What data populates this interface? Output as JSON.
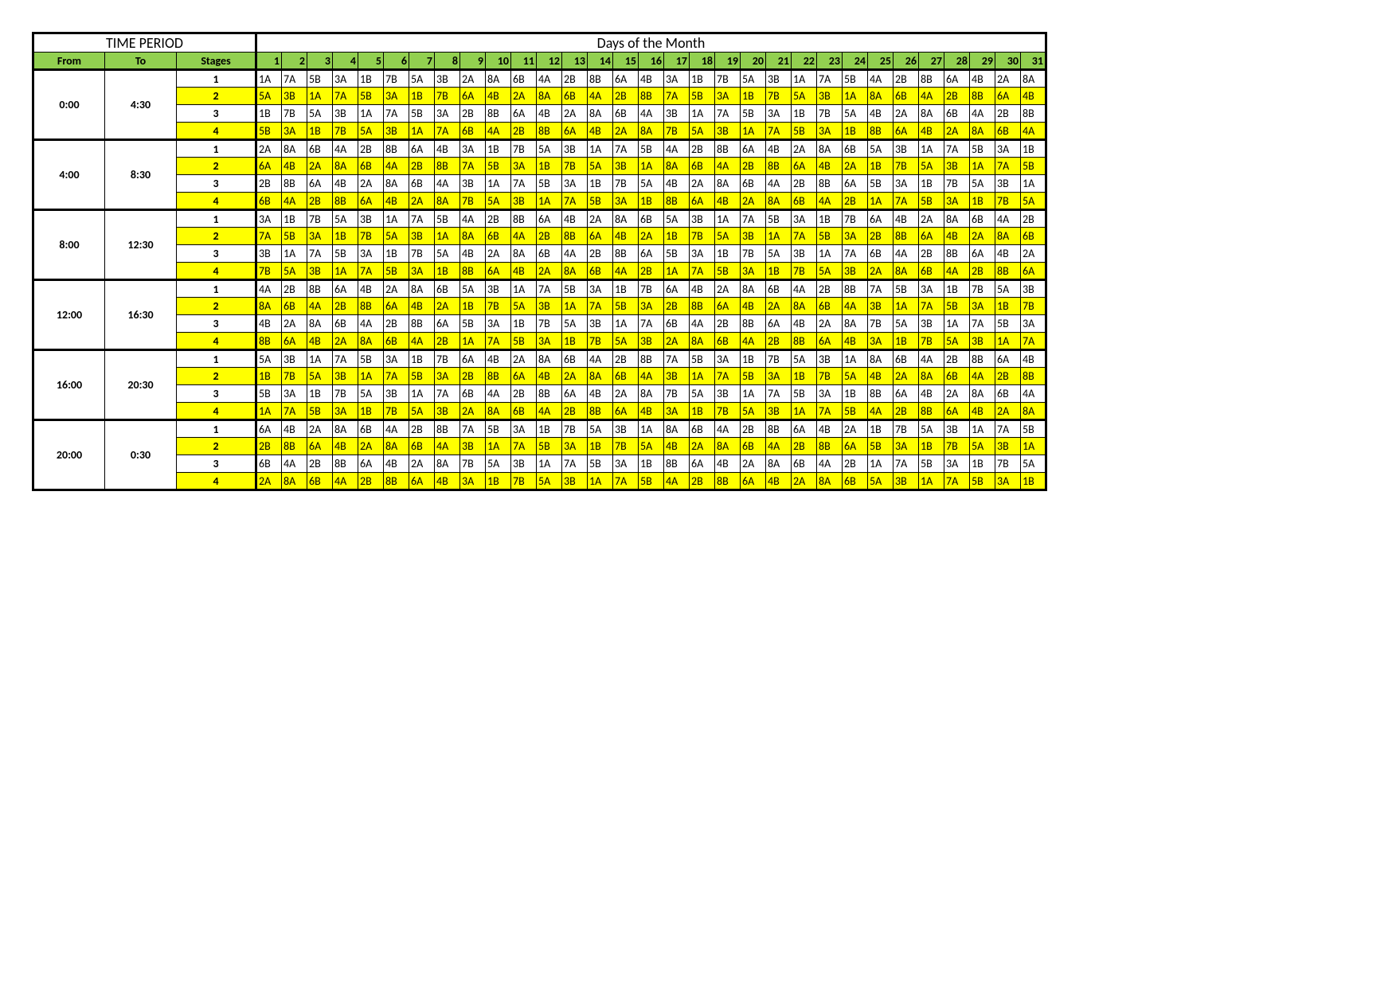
{
  "headers": {
    "time_period": "TIME PERIOD",
    "days_of_month": "Days of the Month",
    "from": "From",
    "to": "To",
    "stages": "Stages"
  },
  "colors": {
    "header_green": "#92d050",
    "yellow": "#ffff00",
    "white": "#ffffff",
    "border": "#000000"
  },
  "day_numbers": [
    1,
    2,
    3,
    4,
    5,
    6,
    7,
    8,
    9,
    10,
    11,
    12,
    13,
    14,
    15,
    16,
    17,
    18,
    19,
    20,
    21,
    22,
    23,
    24,
    25,
    26,
    27,
    28,
    29,
    30,
    31
  ],
  "col_widths": {
    "from": 90,
    "to": 90,
    "stages": 100,
    "day": 32
  },
  "font": {
    "family": "Calibri, Arial, sans-serif",
    "title_size": 18,
    "body_size": 14
  },
  "periods": [
    {
      "from": "0:00",
      "to": "4:30",
      "rows": [
        {
          "stage": "1",
          "yellow": false,
          "cells": [
            "1A",
            "7A",
            "5B",
            "3A",
            "1B",
            "7B",
            "5A",
            "3B",
            "2A",
            "8A",
            "6B",
            "4A",
            "2B",
            "8B",
            "6A",
            "4B",
            "3A",
            "1B",
            "7B",
            "5A",
            "3B",
            "1A",
            "7A",
            "5B",
            "4A",
            "2B",
            "8B",
            "6A",
            "4B",
            "2A",
            "8A"
          ]
        },
        {
          "stage": "2",
          "yellow": true,
          "cells": [
            "5A",
            "3B",
            "1A",
            "7A",
            "5B",
            "3A",
            "1B",
            "7B",
            "6A",
            "4B",
            "2A",
            "8A",
            "6B",
            "4A",
            "2B",
            "8B",
            "7A",
            "5B",
            "3A",
            "1B",
            "7B",
            "5A",
            "3B",
            "1A",
            "8A",
            "6B",
            "4A",
            "2B",
            "8B",
            "6A",
            "4B"
          ]
        },
        {
          "stage": "3",
          "yellow": false,
          "cells": [
            "1B",
            "7B",
            "5A",
            "3B",
            "1A",
            "7A",
            "5B",
            "3A",
            "2B",
            "8B",
            "6A",
            "4B",
            "2A",
            "8A",
            "6B",
            "4A",
            "3B",
            "1A",
            "7A",
            "5B",
            "3A",
            "1B",
            "7B",
            "5A",
            "4B",
            "2A",
            "8A",
            "6B",
            "4A",
            "2B",
            "8B"
          ]
        },
        {
          "stage": "4",
          "yellow": true,
          "cells": [
            "5B",
            "3A",
            "1B",
            "7B",
            "5A",
            "3B",
            "1A",
            "7A",
            "6B",
            "4A",
            "2B",
            "8B",
            "6A",
            "4B",
            "2A",
            "8A",
            "7B",
            "5A",
            "3B",
            "1A",
            "7A",
            "5B",
            "3A",
            "1B",
            "8B",
            "6A",
            "4B",
            "2A",
            "8A",
            "6B",
            "4A"
          ]
        }
      ]
    },
    {
      "from": "4:00",
      "to": "8:30",
      "rows": [
        {
          "stage": "1",
          "yellow": false,
          "cells": [
            "2A",
            "8A",
            "6B",
            "4A",
            "2B",
            "8B",
            "6A",
            "4B",
            "3A",
            "1B",
            "7B",
            "5A",
            "3B",
            "1A",
            "7A",
            "5B",
            "4A",
            "2B",
            "8B",
            "6A",
            "4B",
            "2A",
            "8A",
            "6B",
            "5A",
            "3B",
            "1A",
            "7A",
            "5B",
            "3A",
            "1B"
          ]
        },
        {
          "stage": "2",
          "yellow": true,
          "cells": [
            "6A",
            "4B",
            "2A",
            "8A",
            "6B",
            "4A",
            "2B",
            "8B",
            "7A",
            "5B",
            "3A",
            "1B",
            "7B",
            "5A",
            "3B",
            "1A",
            "8A",
            "6B",
            "4A",
            "2B",
            "8B",
            "6A",
            "4B",
            "2A",
            "1B",
            "7B",
            "5A",
            "3B",
            "1A",
            "7A",
            "5B"
          ]
        },
        {
          "stage": "3",
          "yellow": false,
          "cells": [
            "2B",
            "8B",
            "6A",
            "4B",
            "2A",
            "8A",
            "6B",
            "4A",
            "3B",
            "1A",
            "7A",
            "5B",
            "3A",
            "1B",
            "7B",
            "5A",
            "4B",
            "2A",
            "8A",
            "6B",
            "4A",
            "2B",
            "8B",
            "6A",
            "5B",
            "3A",
            "1B",
            "7B",
            "5A",
            "3B",
            "1A"
          ]
        },
        {
          "stage": "4",
          "yellow": true,
          "cells": [
            "6B",
            "4A",
            "2B",
            "8B",
            "6A",
            "4B",
            "2A",
            "8A",
            "7B",
            "5A",
            "3B",
            "1A",
            "7A",
            "5B",
            "3A",
            "1B",
            "8B",
            "6A",
            "4B",
            "2A",
            "8A",
            "6B",
            "4A",
            "2B",
            "1A",
            "7A",
            "5B",
            "3A",
            "1B",
            "7B",
            "5A"
          ]
        }
      ]
    },
    {
      "from": "8:00",
      "to": "12:30",
      "rows": [
        {
          "stage": "1",
          "yellow": false,
          "cells": [
            "3A",
            "1B",
            "7B",
            "5A",
            "3B",
            "1A",
            "7A",
            "5B",
            "4A",
            "2B",
            "8B",
            "6A",
            "4B",
            "2A",
            "8A",
            "6B",
            "5A",
            "3B",
            "1A",
            "7A",
            "5B",
            "3A",
            "1B",
            "7B",
            "6A",
            "4B",
            "2A",
            "8A",
            "6B",
            "4A",
            "2B"
          ]
        },
        {
          "stage": "2",
          "yellow": true,
          "cells": [
            "7A",
            "5B",
            "3A",
            "1B",
            "7B",
            "5A",
            "3B",
            "1A",
            "8A",
            "6B",
            "4A",
            "2B",
            "8B",
            "6A",
            "4B",
            "2A",
            "1B",
            "7B",
            "5A",
            "3B",
            "1A",
            "7A",
            "5B",
            "3A",
            "2B",
            "8B",
            "6A",
            "4B",
            "2A",
            "8A",
            "6B"
          ]
        },
        {
          "stage": "3",
          "yellow": false,
          "cells": [
            "3B",
            "1A",
            "7A",
            "5B",
            "3A",
            "1B",
            "7B",
            "5A",
            "4B",
            "2A",
            "8A",
            "6B",
            "4A",
            "2B",
            "8B",
            "6A",
            "5B",
            "3A",
            "1B",
            "7B",
            "5A",
            "3B",
            "1A",
            "7A",
            "6B",
            "4A",
            "2B",
            "8B",
            "6A",
            "4B",
            "2A"
          ]
        },
        {
          "stage": "4",
          "yellow": true,
          "cells": [
            "7B",
            "5A",
            "3B",
            "1A",
            "7A",
            "5B",
            "3A",
            "1B",
            "8B",
            "6A",
            "4B",
            "2A",
            "8A",
            "6B",
            "4A",
            "2B",
            "1A",
            "7A",
            "5B",
            "3A",
            "1B",
            "7B",
            "5A",
            "3B",
            "2A",
            "8A",
            "6B",
            "4A",
            "2B",
            "8B",
            "6A"
          ]
        }
      ]
    },
    {
      "from": "12:00",
      "to": "16:30",
      "rows": [
        {
          "stage": "1",
          "yellow": false,
          "cells": [
            "4A",
            "2B",
            "8B",
            "6A",
            "4B",
            "2A",
            "8A",
            "6B",
            "5A",
            "3B",
            "1A",
            "7A",
            "5B",
            "3A",
            "1B",
            "7B",
            "6A",
            "4B",
            "2A",
            "8A",
            "6B",
            "4A",
            "2B",
            "8B",
            "7A",
            "5B",
            "3A",
            "1B",
            "7B",
            "5A",
            "3B"
          ]
        },
        {
          "stage": "2",
          "yellow": true,
          "cells": [
            "8A",
            "6B",
            "4A",
            "2B",
            "8B",
            "6A",
            "4B",
            "2A",
            "1B",
            "7B",
            "5A",
            "3B",
            "1A",
            "7A",
            "5B",
            "3A",
            "2B",
            "8B",
            "6A",
            "4B",
            "2A",
            "8A",
            "6B",
            "4A",
            "3B",
            "1A",
            "7A",
            "5B",
            "3A",
            "1B",
            "7B"
          ]
        },
        {
          "stage": "3",
          "yellow": false,
          "cells": [
            "4B",
            "2A",
            "8A",
            "6B",
            "4A",
            "2B",
            "8B",
            "6A",
            "5B",
            "3A",
            "1B",
            "7B",
            "5A",
            "3B",
            "1A",
            "7A",
            "6B",
            "4A",
            "2B",
            "8B",
            "6A",
            "4B",
            "2A",
            "8A",
            "7B",
            "5A",
            "3B",
            "1A",
            "7A",
            "5B",
            "3A"
          ]
        },
        {
          "stage": "4",
          "yellow": true,
          "cells": [
            "8B",
            "6A",
            "4B",
            "2A",
            "8A",
            "6B",
            "4A",
            "2B",
            "1A",
            "7A",
            "5B",
            "3A",
            "1B",
            "7B",
            "5A",
            "3B",
            "2A",
            "8A",
            "6B",
            "4A",
            "2B",
            "8B",
            "6A",
            "4B",
            "3A",
            "1B",
            "7B",
            "5A",
            "3B",
            "1A",
            "7A"
          ]
        }
      ]
    },
    {
      "from": "16:00",
      "to": "20:30",
      "rows": [
        {
          "stage": "1",
          "yellow": false,
          "cells": [
            "5A",
            "3B",
            "1A",
            "7A",
            "5B",
            "3A",
            "1B",
            "7B",
            "6A",
            "4B",
            "2A",
            "8A",
            "6B",
            "4A",
            "2B",
            "8B",
            "7A",
            "5B",
            "3A",
            "1B",
            "7B",
            "5A",
            "3B",
            "1A",
            "8A",
            "6B",
            "4A",
            "2B",
            "8B",
            "6A",
            "4B"
          ]
        },
        {
          "stage": "2",
          "yellow": true,
          "cells": [
            "1B",
            "7B",
            "5A",
            "3B",
            "1A",
            "7A",
            "5B",
            "3A",
            "2B",
            "8B",
            "6A",
            "4B",
            "2A",
            "8A",
            "6B",
            "4A",
            "3B",
            "1A",
            "7A",
            "5B",
            "3A",
            "1B",
            "7B",
            "5A",
            "4B",
            "2A",
            "8A",
            "6B",
            "4A",
            "2B",
            "8B"
          ]
        },
        {
          "stage": "3",
          "yellow": false,
          "cells": [
            "5B",
            "3A",
            "1B",
            "7B",
            "5A",
            "3B",
            "1A",
            "7A",
            "6B",
            "4A",
            "2B",
            "8B",
            "6A",
            "4B",
            "2A",
            "8A",
            "7B",
            "5A",
            "3B",
            "1A",
            "7A",
            "5B",
            "3A",
            "1B",
            "8B",
            "6A",
            "4B",
            "2A",
            "8A",
            "6B",
            "4A"
          ]
        },
        {
          "stage": "4",
          "yellow": true,
          "cells": [
            "1A",
            "7A",
            "5B",
            "3A",
            "1B",
            "7B",
            "5A",
            "3B",
            "2A",
            "8A",
            "6B",
            "4A",
            "2B",
            "8B",
            "6A",
            "4B",
            "3A",
            "1B",
            "7B",
            "5A",
            "3B",
            "1A",
            "7A",
            "5B",
            "4A",
            "2B",
            "8B",
            "6A",
            "4B",
            "2A",
            "8A"
          ]
        }
      ]
    },
    {
      "from": "20:00",
      "to": "0:30",
      "rows": [
        {
          "stage": "1",
          "yellow": false,
          "cells": [
            "6A",
            "4B",
            "2A",
            "8A",
            "6B",
            "4A",
            "2B",
            "8B",
            "7A",
            "5B",
            "3A",
            "1B",
            "7B",
            "5A",
            "3B",
            "1A",
            "8A",
            "6B",
            "4A",
            "2B",
            "8B",
            "6A",
            "4B",
            "2A",
            "1B",
            "7B",
            "5A",
            "3B",
            "1A",
            "7A",
            "5B"
          ]
        },
        {
          "stage": "2",
          "yellow": true,
          "cells": [
            "2B",
            "8B",
            "6A",
            "4B",
            "2A",
            "8A",
            "6B",
            "4A",
            "3B",
            "1A",
            "7A",
            "5B",
            "3A",
            "1B",
            "7B",
            "5A",
            "4B",
            "2A",
            "8A",
            "6B",
            "4A",
            "2B",
            "8B",
            "6A",
            "5B",
            "3A",
            "1B",
            "7B",
            "5A",
            "3B",
            "1A"
          ]
        },
        {
          "stage": "3",
          "yellow": false,
          "cells": [
            "6B",
            "4A",
            "2B",
            "8B",
            "6A",
            "4B",
            "2A",
            "8A",
            "7B",
            "5A",
            "3B",
            "1A",
            "7A",
            "5B",
            "3A",
            "1B",
            "8B",
            "6A",
            "4B",
            "2A",
            "8A",
            "6B",
            "4A",
            "2B",
            "1A",
            "7A",
            "5B",
            "3A",
            "1B",
            "7B",
            "5A"
          ]
        },
        {
          "stage": "4",
          "yellow": true,
          "cells": [
            "2A",
            "8A",
            "6B",
            "4A",
            "2B",
            "8B",
            "6A",
            "4B",
            "3A",
            "1B",
            "7B",
            "5A",
            "3B",
            "1A",
            "7A",
            "5B",
            "4A",
            "2B",
            "8B",
            "6A",
            "4B",
            "2A",
            "8A",
            "6B",
            "5A",
            "3B",
            "1A",
            "7A",
            "5B",
            "3A",
            "1B"
          ]
        }
      ]
    }
  ]
}
